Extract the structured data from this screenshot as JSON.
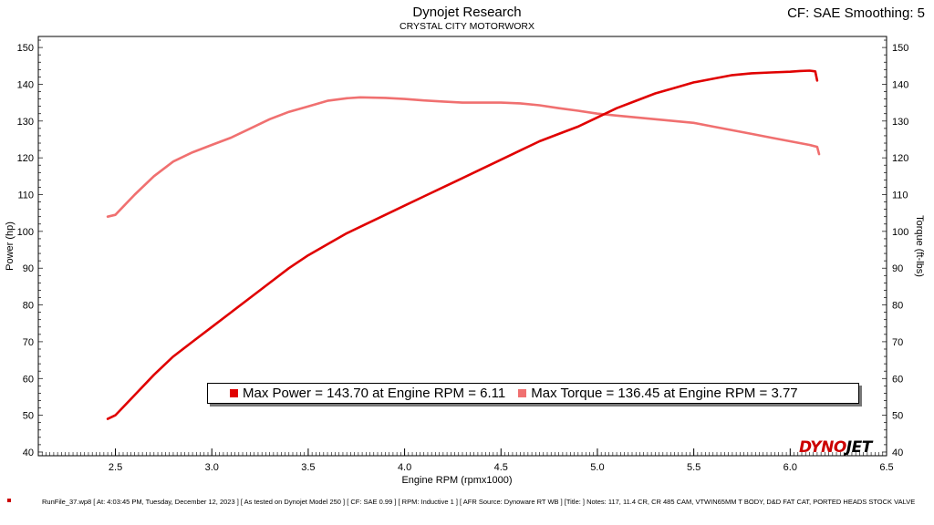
{
  "header": {
    "title": "Dynojet Research",
    "subtitle": "CRYSTAL CITY MOTORWORX",
    "cf_smoothing": "CF: SAE Smoothing: 5"
  },
  "logo": {
    "part1": "DYNO",
    "part2": "JET"
  },
  "legend": {
    "max_power": "Max Power = 143.70 at Engine RPM = 6.11",
    "max_torque": "Max Torque = 136.45 at Engine RPM = 3.77"
  },
  "footer": {
    "text": "RunFile_37.wp8 [ At: 4:03:45 PM, Tuesday, December 12, 2023 ] [ As tested on Dynojet Model 250 ] [ CF: SAE 0.99 ] [ RPM: Inductive 1 ] [ AFR Source: Dynoware RT WB ] [Title: ]   Notes: 117, 11.4 CR, CR 485 CAM, VTWIN65MM T BODY, D&D FAT CAT, PORTED HEADS STOCK VALVE"
  },
  "chart_data": {
    "type": "line",
    "title": "Dynojet Research",
    "subtitle": "CRYSTAL CITY MOTORWORX",
    "xlabel": "Engine RPM (rpmx1000)",
    "ylabel": "Power (hp)",
    "y2label": "Torque (ft-lbs)",
    "xlim": [
      2.1,
      6.5
    ],
    "ylim": [
      39,
      153
    ],
    "y2lim": [
      39,
      153
    ],
    "xticks": [
      2.5,
      3.0,
      3.5,
      4.0,
      4.5,
      5.0,
      5.5,
      6.0,
      6.5
    ],
    "xtick_labels": [
      "2.5",
      "3.0",
      "3.5",
      "4.0",
      "4.5",
      "5.0",
      "5.5",
      "6.0",
      "6.5"
    ],
    "yticks": [
      40,
      50,
      60,
      70,
      80,
      90,
      100,
      110,
      120,
      130,
      140,
      150
    ],
    "ytick_labels": [
      "40",
      "50",
      "60",
      "70",
      "80",
      "90",
      "100",
      "110",
      "120",
      "130",
      "140",
      "150"
    ],
    "grid": false,
    "series": [
      {
        "name": "Max Power",
        "color": "#e00000",
        "axis": "left",
        "x": [
          2.46,
          2.5,
          2.6,
          2.7,
          2.8,
          2.9,
          3.0,
          3.1,
          3.2,
          3.3,
          3.4,
          3.5,
          3.6,
          3.7,
          3.8,
          3.9,
          4.0,
          4.1,
          4.2,
          4.3,
          4.4,
          4.5,
          4.6,
          4.7,
          4.8,
          4.9,
          5.0,
          5.1,
          5.2,
          5.3,
          5.4,
          5.5,
          5.6,
          5.7,
          5.8,
          5.9,
          6.0,
          6.05,
          6.1,
          6.13,
          6.14
        ],
        "y": [
          49,
          50,
          55.5,
          61,
          66,
          70,
          74,
          78,
          82,
          86,
          90,
          93.5,
          96.5,
          99.5,
          102,
          104.5,
          107,
          109.5,
          112,
          114.5,
          117,
          119.5,
          122,
          124.5,
          126.5,
          128.5,
          131,
          133.5,
          135.5,
          137.5,
          139,
          140.5,
          141.5,
          142.5,
          143,
          143.2,
          143.4,
          143.6,
          143.7,
          143.5,
          141
        ]
      },
      {
        "name": "Max Torque",
        "color": "#f07070",
        "axis": "right",
        "x": [
          2.46,
          2.5,
          2.6,
          2.7,
          2.8,
          2.9,
          3.0,
          3.1,
          3.2,
          3.3,
          3.4,
          3.5,
          3.6,
          3.7,
          3.77,
          3.9,
          4.0,
          4.1,
          4.2,
          4.3,
          4.4,
          4.5,
          4.6,
          4.7,
          4.8,
          4.9,
          5.0,
          5.1,
          5.2,
          5.3,
          5.4,
          5.5,
          5.6,
          5.7,
          5.8,
          5.9,
          6.0,
          6.1,
          6.14,
          6.15
        ],
        "y": [
          104,
          104.5,
          110,
          115,
          119,
          121.5,
          123.5,
          125.5,
          128,
          130.5,
          132.5,
          134,
          135.5,
          136.2,
          136.45,
          136.3,
          136,
          135.6,
          135.3,
          135,
          135,
          135,
          134.8,
          134.3,
          133.5,
          132.8,
          132,
          131.5,
          131,
          130.5,
          130,
          129.5,
          128.5,
          127.5,
          126.5,
          125.5,
          124.5,
          123.5,
          123,
          121
        ]
      }
    ]
  }
}
